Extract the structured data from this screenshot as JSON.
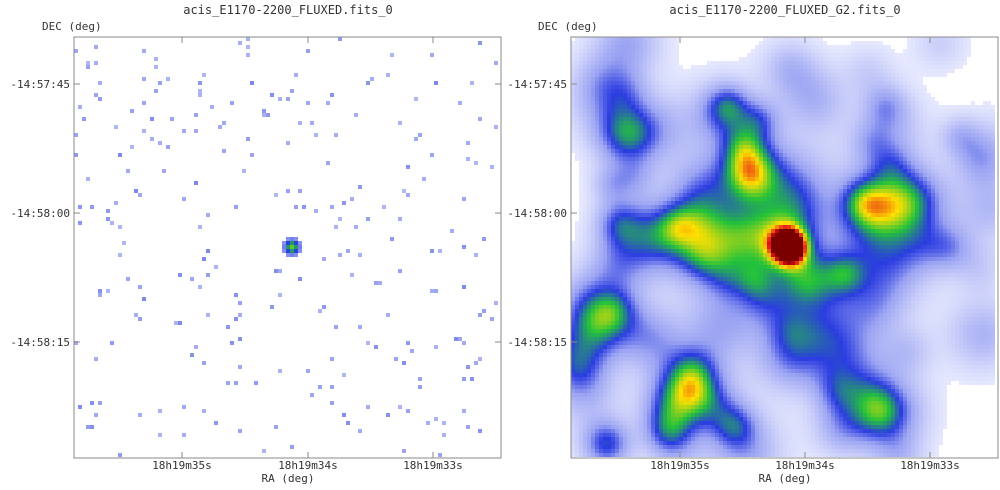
{
  "chart_data": [
    {
      "type": "heatmap",
      "title": "acis_E1170-2200_FLUXED.fits_0",
      "ylabel": "DEC (deg)",
      "xlabel": "RA (deg)",
      "x_ticks": [
        "18h19m35s",
        "18h19m34s",
        "18h19m33s"
      ],
      "y_ticks": [
        "-14:57:45",
        "-14:58:00",
        "-14:58:15"
      ],
      "grid": false,
      "colormap": "white-blue-green-yellow-red",
      "source": {
        "ra": "18h19m34.0s",
        "dec": "-14:58:03.5",
        "peak": 1.0
      },
      "background": "sparse single-pixel counts",
      "smoothing": "none"
    },
    {
      "type": "heatmap",
      "title": "acis_E1170-2200_FLUXED_G2.fits_0",
      "ylabel": "DEC (deg)",
      "xlabel": "RA (deg)",
      "x_ticks": [
        "18h19m35s",
        "18h19m34s",
        "18h19m33s"
      ],
      "y_ticks": [
        "-14:57:45",
        "-14:58:00",
        "-14:58:15"
      ],
      "grid": false,
      "colormap": "white-blue-green-yellow-red",
      "source": {
        "ra": "18h19m34.0s",
        "dec": "-14:58:03.5",
        "peak": 1.0
      },
      "background": "diffuse smoothed emission",
      "smoothing": "gaussian"
    }
  ],
  "colors": {
    "background": "#ffffff",
    "frame": "#888888",
    "low": "#eef0ff",
    "mid": "#9aa3f2",
    "blue": "#2a3ce0",
    "green": "#23c23a",
    "yellow": "#ffe000",
    "red": "#e4101a",
    "core": "#7a0000"
  }
}
